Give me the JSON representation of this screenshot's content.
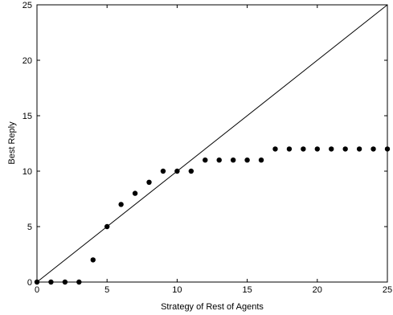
{
  "chart_data": {
    "type": "scatter",
    "title": "",
    "xlabel": "Strategy of Rest of Agents",
    "ylabel": "Best Reply",
    "xlim": [
      0,
      25
    ],
    "ylim": [
      0,
      25
    ],
    "xticks": [
      0,
      5,
      10,
      15,
      20,
      25
    ],
    "yticks": [
      0,
      5,
      10,
      15,
      20,
      25
    ],
    "grid": false,
    "legend": "none",
    "series": [
      {
        "kind": "scatter",
        "color": "#000000",
        "x": [
          0,
          1,
          2,
          3,
          4,
          5,
          6,
          7,
          8,
          9,
          10,
          11,
          12,
          13,
          14,
          15,
          16,
          17,
          18,
          19,
          20,
          21,
          22,
          23,
          24,
          25
        ],
        "y": [
          0,
          0,
          0,
          0,
          2,
          5,
          7,
          8,
          9,
          10,
          10,
          10,
          11,
          11,
          11,
          11,
          11,
          12,
          12,
          12,
          12,
          12,
          12,
          12,
          12,
          12
        ]
      },
      {
        "kind": "line",
        "color": "#000000",
        "x": [
          0,
          25
        ],
        "y": [
          0,
          25
        ]
      }
    ]
  }
}
